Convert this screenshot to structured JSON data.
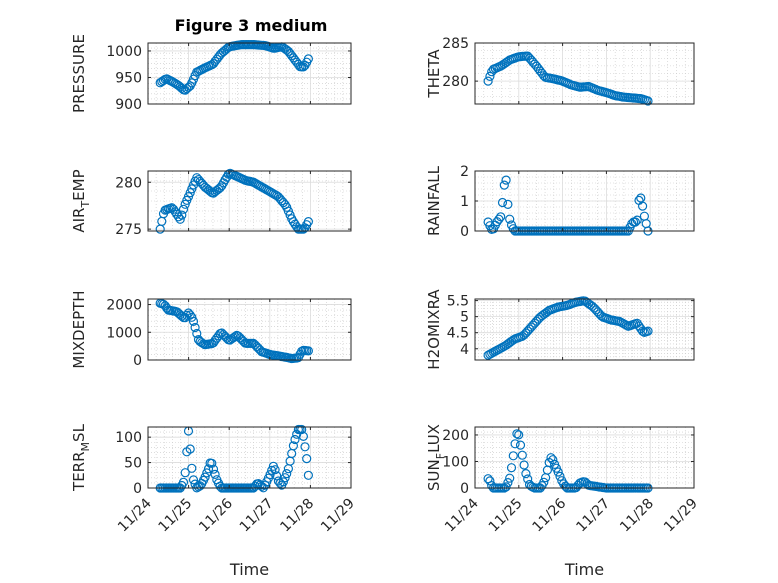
{
  "chart_data": [
    {
      "type": "scatter",
      "name": "pressure",
      "title": "Figure 3 medium",
      "ylabel": "PRESSURE",
      "ylabel_sub": "",
      "ylim": [
        900,
        1015
      ],
      "yticks": [
        900,
        950,
        1000
      ],
      "xlim": [
        0,
        5
      ],
      "xticks": [
        0,
        1,
        2,
        3,
        4,
        5
      ],
      "xticklabels": [
        "11/24",
        "11/25",
        "11/26",
        "11/27",
        "11/28",
        "11/29"
      ],
      "show_xticklabels": false,
      "xlabel": "",
      "grid": true,
      "curve": [
        [
          0.3,
          940
        ],
        [
          0.45,
          948
        ],
        [
          0.6,
          942
        ],
        [
          0.75,
          935
        ],
        [
          0.9,
          925
        ],
        [
          1.05,
          935
        ],
        [
          1.2,
          960
        ],
        [
          1.4,
          968
        ],
        [
          1.6,
          975
        ],
        [
          1.8,
          995
        ],
        [
          2.0,
          1008
        ],
        [
          2.3,
          1012
        ],
        [
          2.6,
          1012
        ],
        [
          2.9,
          1010
        ],
        [
          3.1,
          1005
        ],
        [
          3.3,
          1008
        ],
        [
          3.45,
          1000
        ],
        [
          3.6,
          985
        ],
        [
          3.75,
          970
        ],
        [
          3.85,
          970
        ],
        [
          3.95,
          985
        ]
      ]
    },
    {
      "type": "scatter",
      "name": "theta",
      "title": "",
      "ylabel": "THETA",
      "ylabel_sub": "",
      "ylim": [
        277,
        285
      ],
      "yticks": [
        280,
        285
      ],
      "xlim": [
        0,
        5
      ],
      "xticks": [
        0,
        1,
        2,
        3,
        4,
        5
      ],
      "xticklabels": [
        "11/24",
        "11/25",
        "11/26",
        "11/27",
        "11/28",
        "11/29"
      ],
      "show_xticklabels": false,
      "xlabel": "",
      "grid": true,
      "curve": [
        [
          0.3,
          280
        ],
        [
          0.4,
          281.5
        ],
        [
          0.6,
          282
        ],
        [
          0.8,
          282.8
        ],
        [
          1.0,
          283.2
        ],
        [
          1.2,
          283.3
        ],
        [
          1.4,
          282
        ],
        [
          1.6,
          280.5
        ],
        [
          1.8,
          280.3
        ],
        [
          2.0,
          280
        ],
        [
          2.2,
          279.5
        ],
        [
          2.4,
          279.2
        ],
        [
          2.6,
          279.3
        ],
        [
          2.8,
          278.8
        ],
        [
          3.0,
          278.5
        ],
        [
          3.2,
          278.1
        ],
        [
          3.4,
          277.9
        ],
        [
          3.6,
          277.8
        ],
        [
          3.8,
          277.7
        ],
        [
          3.95,
          277.4
        ]
      ]
    },
    {
      "type": "scatter",
      "name": "air-temp",
      "title": "",
      "ylabel": "AIR",
      "ylabel_sub": "T",
      "ylabel_tail": "EMP",
      "ylim": [
        274.8,
        281.2
      ],
      "yticks": [
        275,
        280
      ],
      "xlim": [
        0,
        5
      ],
      "xticks": [
        0,
        1,
        2,
        3,
        4,
        5
      ],
      "xticklabels": [
        "11/24",
        "11/25",
        "11/26",
        "11/27",
        "11/28",
        "11/29"
      ],
      "show_xticklabels": false,
      "xlabel": "",
      "grid": true,
      "curve": [
        [
          0.3,
          275
        ],
        [
          0.4,
          277
        ],
        [
          0.6,
          277.3
        ],
        [
          0.8,
          276
        ],
        [
          0.9,
          277.5
        ],
        [
          1.05,
          279
        ],
        [
          1.2,
          280.5
        ],
        [
          1.4,
          279.5
        ],
        [
          1.6,
          278.8
        ],
        [
          1.8,
          279.5
        ],
        [
          2.0,
          281
        ],
        [
          2.2,
          280.6
        ],
        [
          2.4,
          280.2
        ],
        [
          2.6,
          280
        ],
        [
          2.8,
          279.5
        ],
        [
          3.0,
          279
        ],
        [
          3.2,
          278.5
        ],
        [
          3.4,
          277.5
        ],
        [
          3.55,
          276
        ],
        [
          3.7,
          275
        ],
        [
          3.85,
          275
        ],
        [
          3.95,
          275.8
        ]
      ]
    },
    {
      "type": "scatter",
      "name": "rainfall",
      "title": "",
      "ylabel": "RAINFALL",
      "ylabel_sub": "",
      "ylim": [
        0,
        2
      ],
      "yticks": [
        0,
        1,
        2
      ],
      "xlim": [
        0,
        5
      ],
      "xticks": [
        0,
        1,
        2,
        3,
        4,
        5
      ],
      "xticklabels": [
        "11/24",
        "11/25",
        "11/26",
        "11/27",
        "11/28",
        "11/29"
      ],
      "show_xticklabels": false,
      "xlabel": "",
      "grid": true,
      "curve": [
        [
          0.3,
          0.3
        ],
        [
          0.4,
          0
        ],
        [
          0.5,
          0.3
        ],
        [
          0.6,
          0.5
        ],
        [
          0.65,
          1.3
        ],
        [
          0.7,
          1.9
        ],
        [
          0.75,
          0.9
        ],
        [
          0.8,
          0.3
        ],
        [
          0.9,
          0
        ],
        [
          1.5,
          0
        ],
        [
          2.0,
          0
        ],
        [
          2.5,
          0
        ],
        [
          3.0,
          0
        ],
        [
          3.5,
          0
        ],
        [
          3.6,
          0.3
        ],
        [
          3.7,
          0.3
        ],
        [
          3.75,
          1.1
        ],
        [
          3.8,
          1.1
        ],
        [
          3.85,
          0.6
        ],
        [
          3.9,
          0.3
        ],
        [
          3.95,
          0
        ]
      ]
    },
    {
      "type": "scatter",
      "name": "mixdepth",
      "title": "",
      "ylabel": "MIXDEPTH",
      "ylabel_sub": "",
      "ylim": [
        0,
        2200
      ],
      "yticks": [
        0,
        1000,
        2000
      ],
      "xlim": [
        0,
        5
      ],
      "xticks": [
        0,
        1,
        2,
        3,
        4,
        5
      ],
      "xticklabels": [
        "11/24",
        "11/25",
        "11/26",
        "11/27",
        "11/28",
        "11/29"
      ],
      "show_xticklabels": false,
      "xlabel": "",
      "grid": true,
      "curve": [
        [
          0.3,
          2050
        ],
        [
          0.4,
          2000
        ],
        [
          0.5,
          1800
        ],
        [
          0.7,
          1750
        ],
        [
          0.9,
          1500
        ],
        [
          1.0,
          1700
        ],
        [
          1.1,
          1500
        ],
        [
          1.25,
          700
        ],
        [
          1.4,
          550
        ],
        [
          1.6,
          600
        ],
        [
          1.8,
          1000
        ],
        [
          2.0,
          700
        ],
        [
          2.2,
          900
        ],
        [
          2.4,
          600
        ],
        [
          2.6,
          600
        ],
        [
          2.8,
          300
        ],
        [
          3.0,
          200
        ],
        [
          3.2,
          150
        ],
        [
          3.4,
          100
        ],
        [
          3.55,
          50
        ],
        [
          3.7,
          80
        ],
        [
          3.8,
          350
        ],
        [
          3.95,
          330
        ]
      ]
    },
    {
      "type": "scatter",
      "name": "h2o-mix",
      "title": "",
      "ylabel": "H2OMIXRA",
      "ylabel_sub": "",
      "ylim": [
        3.65,
        5.55
      ],
      "yticks": [
        4,
        4.5,
        5,
        5.5
      ],
      "xlim": [
        0,
        5
      ],
      "xticks": [
        0,
        1,
        2,
        3,
        4,
        5
      ],
      "xticklabels": [
        "11/24",
        "11/25",
        "11/26",
        "11/27",
        "11/28",
        "11/29"
      ],
      "show_xticklabels": false,
      "xlabel": "",
      "grid": true,
      "curve": [
        [
          0.3,
          3.8
        ],
        [
          0.5,
          3.95
        ],
        [
          0.7,
          4.1
        ],
        [
          0.9,
          4.3
        ],
        [
          1.1,
          4.4
        ],
        [
          1.3,
          4.7
        ],
        [
          1.5,
          5.0
        ],
        [
          1.7,
          5.2
        ],
        [
          1.9,
          5.3
        ],
        [
          2.1,
          5.35
        ],
        [
          2.3,
          5.45
        ],
        [
          2.5,
          5.5
        ],
        [
          2.7,
          5.3
        ],
        [
          2.9,
          5.0
        ],
        [
          3.1,
          4.9
        ],
        [
          3.3,
          4.85
        ],
        [
          3.5,
          4.7
        ],
        [
          3.7,
          4.8
        ],
        [
          3.85,
          4.5
        ],
        [
          3.95,
          4.55
        ]
      ]
    },
    {
      "type": "scatter",
      "name": "terr-msl",
      "title": "",
      "ylabel": "TERR",
      "ylabel_sub": "M",
      "ylabel_tail": "SL",
      "ylim": [
        0,
        120
      ],
      "yticks": [
        0,
        50,
        100
      ],
      "xlim": [
        0,
        5
      ],
      "xticks": [
        0,
        1,
        2,
        3,
        4,
        5
      ],
      "xticklabels": [
        "11/24",
        "11/25",
        "11/26",
        "11/27",
        "11/28",
        "11/29"
      ],
      "show_xticklabels": true,
      "xlabel": "Time",
      "grid": true,
      "curve": [
        [
          0.3,
          0
        ],
        [
          0.8,
          0
        ],
        [
          0.9,
          15
        ],
        [
          1.0,
          115
        ],
        [
          1.05,
          65
        ],
        [
          1.1,
          20
        ],
        [
          1.2,
          0
        ],
        [
          1.3,
          5
        ],
        [
          1.4,
          20
        ],
        [
          1.5,
          40
        ],
        [
          1.55,
          55
        ],
        [
          1.6,
          40
        ],
        [
          1.7,
          15
        ],
        [
          1.8,
          0
        ],
        [
          2.3,
          0
        ],
        [
          2.6,
          0
        ],
        [
          2.7,
          10
        ],
        [
          2.85,
          0
        ],
        [
          3.0,
          25
        ],
        [
          3.1,
          45
        ],
        [
          3.2,
          15
        ],
        [
          3.3,
          5
        ],
        [
          3.45,
          35
        ],
        [
          3.6,
          90
        ],
        [
          3.7,
          115
        ],
        [
          3.8,
          115
        ],
        [
          3.85,
          90
        ],
        [
          3.9,
          65
        ],
        [
          3.95,
          25
        ]
      ]
    },
    {
      "type": "scatter",
      "name": "sun-flux",
      "title": "",
      "ylabel": "SUN",
      "ylabel_sub": "F",
      "ylabel_tail": "LUX",
      "ylim": [
        0,
        230
      ],
      "yticks": [
        0,
        100,
        200
      ],
      "xlim": [
        0,
        5
      ],
      "xticks": [
        0,
        1,
        2,
        3,
        4,
        5
      ],
      "xticklabels": [
        "11/24",
        "11/25",
        "11/26",
        "11/27",
        "11/28",
        "11/29"
      ],
      "show_xticklabels": true,
      "xlabel": "Time",
      "grid": true,
      "curve": [
        [
          0.3,
          35
        ],
        [
          0.35,
          25
        ],
        [
          0.4,
          0
        ],
        [
          0.7,
          0
        ],
        [
          0.8,
          40
        ],
        [
          0.9,
          150
        ],
        [
          0.95,
          205
        ],
        [
          1.0,
          200
        ],
        [
          1.05,
          150
        ],
        [
          1.15,
          60
        ],
        [
          1.25,
          10
        ],
        [
          1.35,
          0
        ],
        [
          1.5,
          0
        ],
        [
          1.6,
          30
        ],
        [
          1.7,
          100
        ],
        [
          1.75,
          120
        ],
        [
          1.8,
          95
        ],
        [
          1.9,
          60
        ],
        [
          2.0,
          20
        ],
        [
          2.1,
          0
        ],
        [
          2.3,
          0
        ],
        [
          2.4,
          20
        ],
        [
          2.5,
          25
        ],
        [
          2.6,
          10
        ],
        [
          2.8,
          5
        ],
        [
          3.0,
          0
        ],
        [
          3.5,
          0
        ],
        [
          3.95,
          0
        ]
      ]
    }
  ]
}
